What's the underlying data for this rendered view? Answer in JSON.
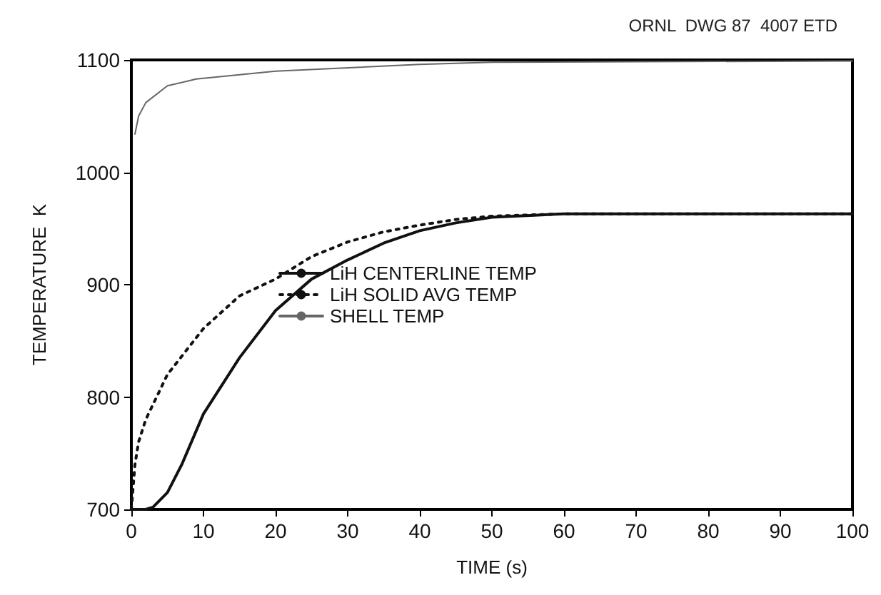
{
  "chart_data": {
    "type": "line",
    "xlabel": "TIME (s)",
    "ylabel": "TEMPERATURE  K",
    "annotations": [
      "ORNL  DWG 87  4007 ETD"
    ],
    "xlim": [
      0,
      100
    ],
    "xticks": [
      0,
      10,
      20,
      30,
      40,
      50,
      60,
      70,
      80,
      90,
      100
    ],
    "ylim": [
      700,
      1100
    ],
    "yticks": [
      700,
      800,
      900,
      1000,
      1100
    ],
    "grid": false,
    "legend": "center",
    "marker": "none",
    "series": [
      {
        "name": "LiH CENTERLINE TEMP",
        "color": "#111111",
        "line_style": "solid",
        "x": [
          0,
          2,
          3,
          5,
          7,
          10,
          15,
          20,
          25,
          30,
          35,
          40,
          45,
          50,
          60,
          100
        ],
        "values": [
          700,
          700,
          702,
          715,
          740,
          785,
          835,
          877,
          905,
          922,
          937,
          948,
          955,
          960,
          963,
          963
        ]
      },
      {
        "name": "LiH SOLID AVG TEMP",
        "color": "#111111",
        "line_style": "dotted",
        "x": [
          0,
          0.5,
          1,
          2,
          5,
          10,
          15,
          20,
          25,
          30,
          35,
          40,
          45,
          50,
          60,
          100
        ],
        "values": [
          700,
          740,
          760,
          780,
          820,
          861,
          890,
          905,
          925,
          938,
          947,
          953,
          958,
          961,
          963,
          963
        ]
      },
      {
        "name": "SHELL TEMP",
        "color": "#666666",
        "line_style": "solid",
        "x": [
          0.5,
          1,
          2,
          5,
          9,
          20,
          40,
          50,
          100
        ],
        "values": [
          1034,
          1050,
          1062,
          1077,
          1083,
          1090,
          1096,
          1098,
          1099
        ]
      }
    ]
  }
}
